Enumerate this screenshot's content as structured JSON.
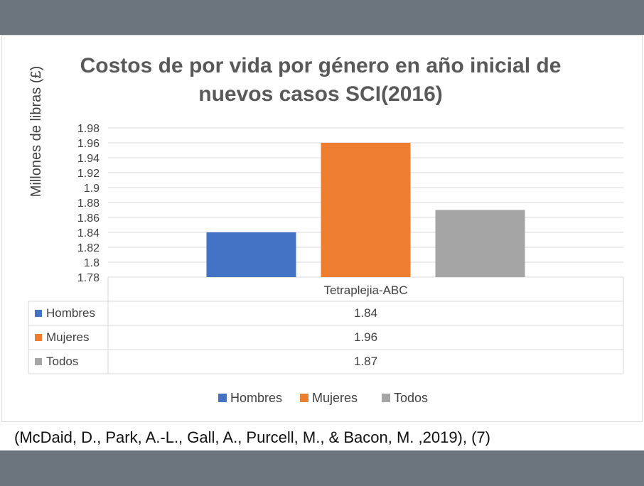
{
  "chart_data": {
    "type": "bar",
    "title": "Costos de por vida por género en año inicial de nuevos casos SCI(2016)",
    "title_lines": [
      "Costos de por vida por género en año inicial de",
      "nuevos casos SCI(2016)"
    ],
    "ylabel": "Millones de libras (£)",
    "xlabel": "",
    "categories": [
      "Tetraplejia-ABC"
    ],
    "ylim": [
      1.78,
      1.98
    ],
    "yticks": [
      1.78,
      1.8,
      1.82,
      1.84,
      1.86,
      1.88,
      1.9,
      1.92,
      1.94,
      1.96,
      1.98
    ],
    "grid": true,
    "legend_position": "bottom",
    "data_table": true,
    "series": [
      {
        "name": "Hombres",
        "values": [
          1.84
        ],
        "color": "#4472c4"
      },
      {
        "name": "Mujeres",
        "values": [
          1.96
        ],
        "color": "#ed7d31"
      },
      {
        "name": "Todos",
        "values": [
          1.87
        ],
        "color": "#a5a5a5"
      }
    ]
  },
  "citation": "(McDaid, D., Park, A.-L., Gall, A., Purcell, M., & Bacon, M. ,2019), (7)",
  "colors": {
    "band": "#6b737c",
    "grid": "#d9d9d9",
    "text": "#404040",
    "title": "#595959"
  }
}
